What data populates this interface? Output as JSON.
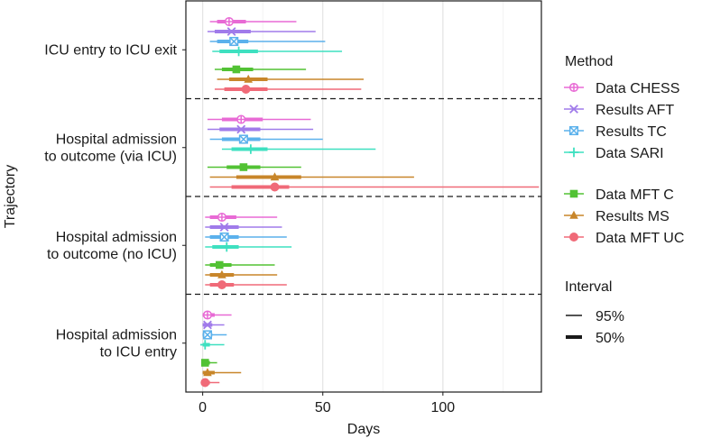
{
  "chart_data": {
    "type": "forest-interval",
    "xlabel": "Days",
    "ylabel": "Trajectory",
    "xlim": [
      -7,
      141
    ],
    "xticks": [
      0,
      50,
      100
    ],
    "grid": "vertical",
    "panels": [
      {
        "label_lines": [
          "ICU entry to ICU exit"
        ]
      },
      {
        "label_lines": [
          "Hospital admission",
          "to outcome (via ICU)"
        ]
      },
      {
        "label_lines": [
          "Hospital admission",
          "to outcome (no ICU)"
        ]
      },
      {
        "label_lines": [
          "Hospital admission",
          "to ICU entry"
        ]
      }
    ],
    "series": [
      {
        "name": "Data CHESS",
        "color": "#e86ad5",
        "marker": "circle-plus",
        "values": [
          {
            "est": 11,
            "lo95": 3,
            "hi95": 39,
            "lo50": 6,
            "hi50": 18
          },
          {
            "est": 16,
            "lo95": 2,
            "hi95": 45,
            "lo50": 8,
            "hi50": 25
          },
          {
            "est": 8,
            "lo95": 1,
            "hi95": 31,
            "lo50": 3,
            "hi50": 14
          },
          {
            "est": 2,
            "lo95": 0,
            "hi95": 12,
            "lo50": 0,
            "hi50": 5
          }
        ]
      },
      {
        "name": "Results AFT",
        "color": "#a07bea",
        "marker": "x",
        "values": [
          {
            "est": 12,
            "lo95": 2,
            "hi95": 47,
            "lo50": 5,
            "hi50": 20
          },
          {
            "est": 16,
            "lo95": 2,
            "hi95": 46,
            "lo50": 7,
            "hi50": 24
          },
          {
            "est": 9,
            "lo95": 1,
            "hi95": 33,
            "lo50": 3,
            "hi50": 15
          },
          {
            "est": 2,
            "lo95": 0,
            "hi95": 9,
            "lo50": 0,
            "hi50": 4
          }
        ]
      },
      {
        "name": "Results TC",
        "color": "#5bb1ec",
        "marker": "square-x",
        "values": [
          {
            "est": 13,
            "lo95": 3,
            "hi95": 51,
            "lo50": 6,
            "hi50": 19
          },
          {
            "est": 17,
            "lo95": 3,
            "hi95": 50,
            "lo50": 8,
            "hi50": 24
          },
          {
            "est": 9,
            "lo95": 1,
            "hi95": 35,
            "lo50": 3,
            "hi50": 15
          },
          {
            "est": 2,
            "lo95": 0,
            "hi95": 10,
            "lo50": 0,
            "hi50": 4
          }
        ]
      },
      {
        "name": "Data SARI",
        "color": "#3ee0c0",
        "marker": "plus",
        "values": [
          {
            "est": 15,
            "lo95": 4,
            "hi95": 58,
            "lo50": 7,
            "hi50": 23
          },
          {
            "est": 20,
            "lo95": 8,
            "hi95": 72,
            "lo50": 12,
            "hi50": 27
          },
          {
            "est": 10,
            "lo95": 1,
            "hi95": 37,
            "lo50": 4,
            "hi50": 15
          },
          {
            "est": 1,
            "lo95": 0,
            "hi95": 9,
            "lo50": 0,
            "hi50": 3
          }
        ]
      },
      {
        "name": "Data MFT C",
        "color": "#52c234",
        "marker": "square",
        "values": [
          {
            "est": 14,
            "lo95": 5,
            "hi95": 43,
            "lo50": 8,
            "hi50": 21
          },
          {
            "est": 17,
            "lo95": 2,
            "hi95": 41,
            "lo50": 10,
            "hi50": 24
          },
          {
            "est": 7,
            "lo95": 1,
            "hi95": 30,
            "lo50": 3,
            "hi50": 12
          },
          {
            "est": 1,
            "lo95": 0,
            "hi95": 6,
            "lo50": 0,
            "hi50": 3
          }
        ]
      },
      {
        "name": "Results MS",
        "color": "#c8862a",
        "marker": "triangle",
        "values": [
          {
            "est": 19,
            "lo95": 6,
            "hi95": 67,
            "lo50": 11,
            "hi50": 27
          },
          {
            "est": 30,
            "lo95": 3,
            "hi95": 88,
            "lo50": 14,
            "hi50": 41
          },
          {
            "est": 8,
            "lo95": 1,
            "hi95": 31,
            "lo50": 3,
            "hi50": 13
          },
          {
            "est": 2,
            "lo95": 0,
            "hi95": 16,
            "lo50": 0,
            "hi50": 5
          }
        ]
      },
      {
        "name": "Data MFT UC",
        "color": "#f06a78",
        "marker": "circle",
        "values": [
          {
            "est": 18,
            "lo95": 5,
            "hi95": 66,
            "lo50": 9,
            "hi50": 27
          },
          {
            "est": 30,
            "lo95": 3,
            "hi95": 140,
            "lo50": 12,
            "hi50": 36
          },
          {
            "est": 8,
            "lo95": 1,
            "hi95": 35,
            "lo50": 3,
            "hi50": 13
          },
          {
            "est": 1,
            "lo95": 0,
            "hi95": 7,
            "lo50": 0,
            "hi50": 3
          }
        ]
      }
    ],
    "legend": {
      "position": "right",
      "method_title": "Method",
      "interval_title": "Interval",
      "interval_items": [
        "95%",
        "50%"
      ]
    }
  }
}
